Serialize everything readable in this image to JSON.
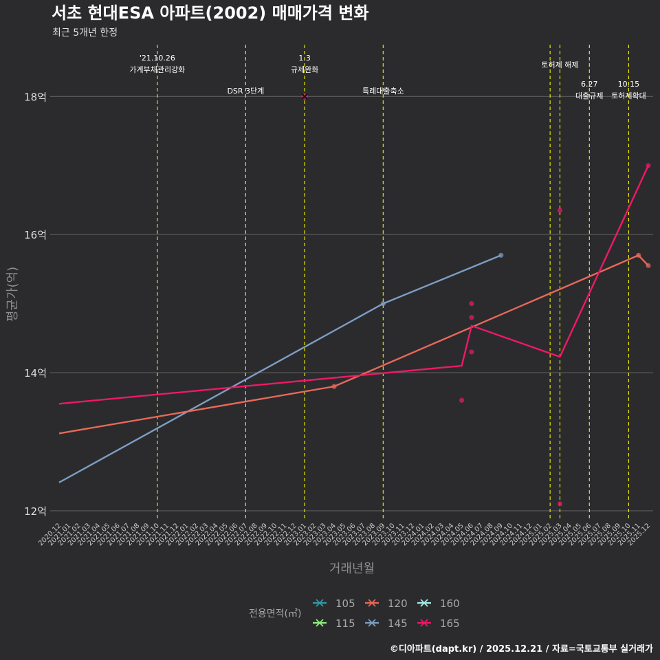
{
  "chart_data": {
    "type": "line",
    "title": "서초 현대ESA 아파트(2002) 매매가격 변화",
    "subtitle": "최근 5개년 한정",
    "xlabel": "거래년월",
    "ylabel": "평균가(억)",
    "caption": "©디아파트(dapt.kr) / 2025.12.21 / 자료=국토교통부 실거래가",
    "ylim": [
      11.85,
      18.75
    ],
    "yticks": [
      12,
      14,
      16,
      18
    ],
    "ytick_labels": [
      "12억",
      "14억",
      "16억",
      "18억"
    ],
    "categories": [
      "2020.12",
      "2021.01",
      "2021.02",
      "2021.03",
      "2021.04",
      "2021.05",
      "2021.06",
      "2021.07",
      "2021.08",
      "2021.09",
      "2021.10",
      "2021.11",
      "2021.12",
      "2022.01",
      "2022.02",
      "2022.03",
      "2022.04",
      "2022.05",
      "2022.06",
      "2022.07",
      "2022.08",
      "2022.09",
      "2022.10",
      "2022.11",
      "2022.12",
      "2023.01",
      "2023.02",
      "2023.03",
      "2023.04",
      "2023.05",
      "2023.06",
      "2023.07",
      "2023.08",
      "2023.09",
      "2023.10",
      "2023.11",
      "2023.12",
      "2024.01",
      "2024.02",
      "2024.03",
      "2024.04",
      "2024.05",
      "2024.06",
      "2024.07",
      "2024.08",
      "2024.09",
      "2024.10",
      "2024.11",
      "2024.12",
      "2025.01",
      "2025.02",
      "2025.03",
      "2025.04",
      "2025.05",
      "2025.06",
      "2025.07",
      "2025.08",
      "2025.09",
      "2025.10",
      "2025.11",
      "2025.12"
    ],
    "legend_title": "전용면적(㎡)",
    "legend": [
      {
        "name": "105",
        "color": "#2e9aa6"
      },
      {
        "name": "120",
        "color": "#e8695a"
      },
      {
        "name": "160",
        "color": "#a6ece6"
      },
      {
        "name": "115",
        "color": "#8fef7c"
      },
      {
        "name": "145",
        "color": "#7e9ec4"
      },
      {
        "name": "165",
        "color": "#ef1966"
      }
    ],
    "series": [
      {
        "name": "145",
        "color": "#7e9ec4",
        "line": [
          [
            "2020.12",
            12.41
          ],
          [
            "2023.09",
            15.0
          ],
          [
            "2024.09",
            15.7
          ]
        ],
        "points": [
          [
            "2023.09",
            15.0
          ],
          [
            "2024.09",
            15.7
          ]
        ]
      },
      {
        "name": "120",
        "color": "#e8695a",
        "line": [
          [
            "2020.12",
            13.12
          ],
          [
            "2023.04",
            13.8
          ],
          [
            "2025.11",
            15.7
          ],
          [
            "2025.12",
            15.55
          ]
        ],
        "points": [
          [
            "2023.04",
            13.8
          ],
          [
            "2025.11",
            15.7
          ],
          [
            "2025.12",
            15.55
          ]
        ]
      },
      {
        "name": "165",
        "color": "#ef1966",
        "line": [
          [
            "2020.12",
            13.55
          ],
          [
            "2024.05",
            14.1
          ],
          [
            "2024.06",
            14.68
          ],
          [
            "2025.03",
            14.23
          ],
          [
            "2025.12",
            17.0
          ]
        ],
        "points": [
          [
            "2024.05",
            13.6
          ],
          [
            "2024.06",
            15.0
          ],
          [
            "2024.06",
            14.8
          ],
          [
            "2024.06",
            14.3
          ],
          [
            "2025.03",
            16.35
          ],
          [
            "2025.03",
            12.1
          ],
          [
            "2025.12",
            17.0
          ]
        ]
      }
    ],
    "special_marker": {
      "x": "2023.01",
      "y": 18.0,
      "shape": "x"
    },
    "annotations": [
      {
        "x": "2021.10",
        "lines": [
          "'21.10.26",
          "가계부채관리강화"
        ]
      },
      {
        "x": "2022.07",
        "lines": [
          "DSR 3단계"
        ]
      },
      {
        "x": "2023.01",
        "lines": [
          "1.3",
          "규제완화"
        ]
      },
      {
        "x": "2023.09",
        "lines": [
          "특례대출축소"
        ]
      },
      {
        "x": "2025.02",
        "lines": []
      },
      {
        "x": "2025.03",
        "lines": [
          "토허제 해제"
        ]
      },
      {
        "x": "2025.06",
        "lines": [
          "6.27",
          "대출규제"
        ]
      },
      {
        "x": "2025.10",
        "lines": [
          "10.15",
          "토허제확대"
        ]
      }
    ]
  }
}
